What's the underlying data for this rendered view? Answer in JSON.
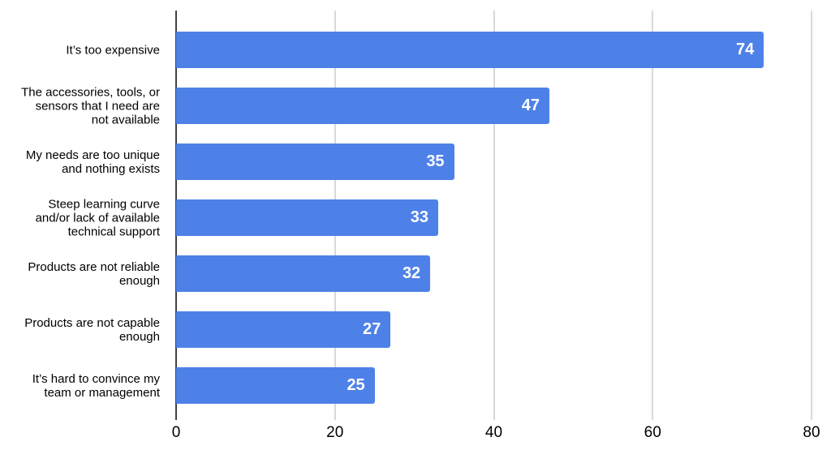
{
  "chart_data": {
    "type": "bar",
    "orientation": "horizontal",
    "title": "",
    "categories": [
      "It’s too expensive",
      "The accessories, tools, or\nsensors that I need are\nnot available",
      "My needs are too unique\nand nothing exists",
      "Steep learning curve\nand/or lack of available\ntechnical support",
      "Products are not reliable\nenough",
      "Products are not capable\nenough",
      "It’s hard to convince my\nteam or management"
    ],
    "values": [
      74,
      47,
      35,
      33,
      32,
      27,
      25
    ],
    "x_ticks": [
      0,
      20,
      40,
      60,
      80
    ],
    "xlim": [
      0,
      80
    ],
    "grid": true,
    "legend": "none",
    "bar_color": "#4e81e8",
    "value_label_color": "#ffffff",
    "gridline_color": "#d9d9d9",
    "axis_color": "#424242",
    "text_color": "#000000"
  }
}
